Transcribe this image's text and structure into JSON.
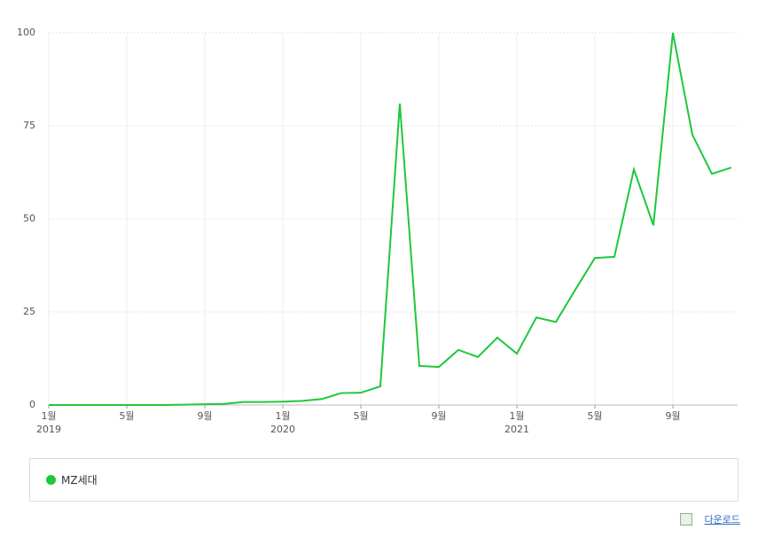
{
  "chart_data": {
    "type": "line",
    "categories": [
      "1월",
      null,
      null,
      null,
      "5월",
      null,
      null,
      null,
      "9월",
      null,
      null,
      null,
      "1월",
      null,
      null,
      null,
      "5월",
      null,
      null,
      null,
      "9월",
      null,
      null,
      null,
      "1월",
      null,
      null,
      null,
      "5월",
      null,
      null,
      null,
      "9월",
      null,
      null,
      null
    ],
    "year_labels": [
      "2019",
      null,
      null,
      null,
      null,
      null,
      null,
      null,
      null,
      null,
      null,
      null,
      "2020",
      null,
      null,
      null,
      null,
      null,
      null,
      null,
      null,
      null,
      null,
      null,
      "2021",
      null,
      null,
      null,
      null,
      null,
      null,
      null,
      null,
      null,
      null,
      null
    ],
    "series": [
      {
        "name": "MZ세대",
        "color": "#1ec83c",
        "values": [
          0,
          0,
          0,
          0,
          0,
          0,
          0,
          0.1,
          0.2,
          0.3,
          0.8,
          0.8,
          0.9,
          1.1,
          1.6,
          3.2,
          3.3,
          5.0,
          81,
          10.5,
          10.2,
          14.8,
          12.9,
          18.1,
          13.8,
          23.5,
          22.3,
          31,
          39.5,
          39.8,
          63.3,
          48.3,
          100,
          72.6,
          62.1,
          63.8
        ]
      }
    ],
    "ylim": [
      0,
      100
    ],
    "yticks": [
      0,
      25,
      50,
      75,
      100
    ],
    "grid": true
  },
  "download": "다운로드"
}
